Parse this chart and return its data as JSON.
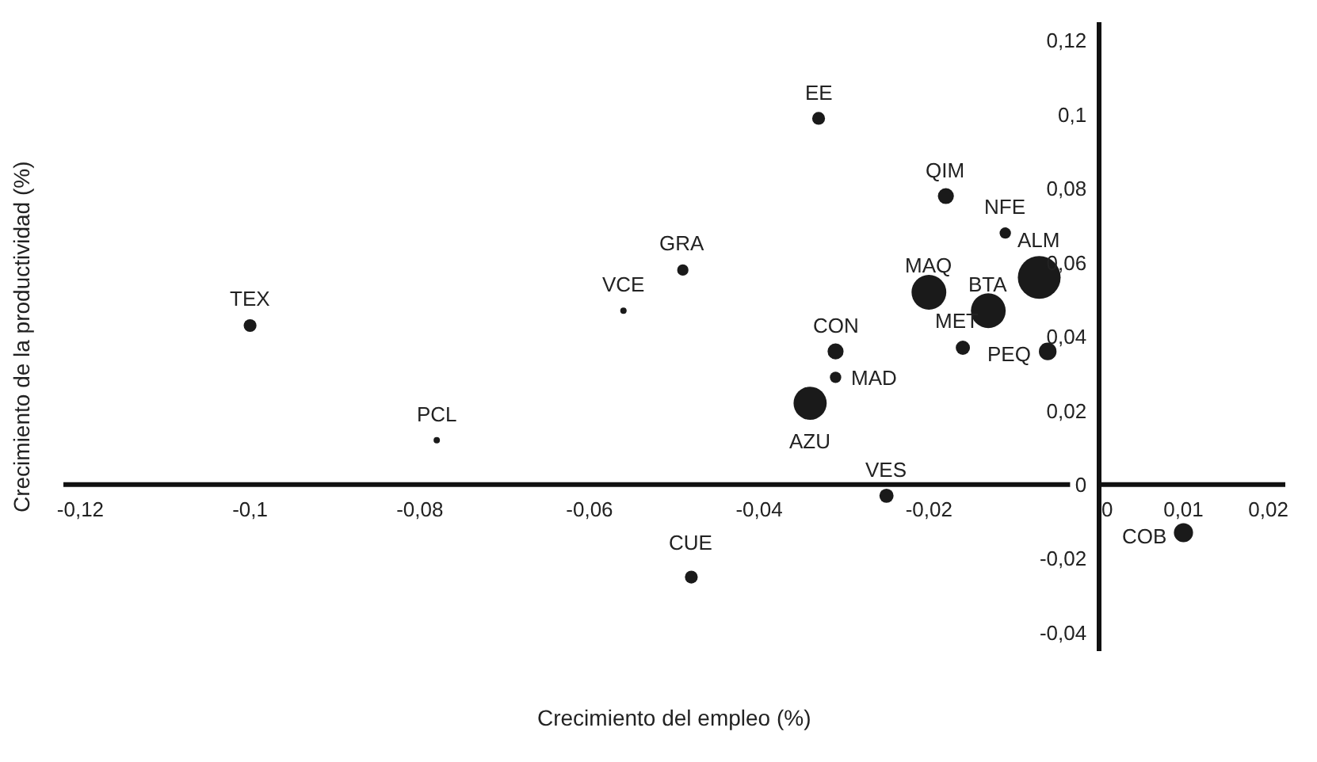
{
  "chart_data": {
    "type": "bubble",
    "xlabel": "Crecimiento del empleo (%)",
    "ylabel": "Crecimiento de la productividad (%)",
    "xlim": [
      -0.122,
      0.022
    ],
    "ylim": [
      -0.045,
      0.125
    ],
    "xticks": [
      {
        "value": -0.12,
        "label": "-0,12"
      },
      {
        "value": -0.1,
        "label": "-0,1"
      },
      {
        "value": -0.08,
        "label": "-0,08"
      },
      {
        "value": -0.06,
        "label": "-0,06"
      },
      {
        "value": -0.04,
        "label": "-0,04"
      },
      {
        "value": -0.02,
        "label": "-0,02"
      },
      0,
      {
        "value": 0.01,
        "label": "0,01"
      },
      {
        "value": 0.02,
        "label": "0,02"
      }
    ],
    "yticks": [
      {
        "value": -0.04,
        "label": "-0,04"
      },
      {
        "value": -0.02,
        "label": "-0,02"
      },
      0,
      {
        "value": 0.02,
        "label": "0,02"
      },
      {
        "value": 0.04,
        "label": "0,04"
      },
      {
        "value": 0.06,
        "label": "0,06"
      },
      {
        "value": 0.08,
        "label": "0,08"
      },
      {
        "value": 0.1,
        "label": "0,1"
      },
      {
        "value": 0.12,
        "label": "0,12"
      }
    ],
    "grid": false,
    "marker": "circle",
    "series": [
      {
        "color": "#1a1a1a",
        "x": [
          -0.1,
          -0.078,
          -0.056,
          -0.049,
          -0.048,
          -0.034,
          -0.031,
          -0.031,
          -0.033,
          -0.025,
          -0.018,
          -0.02,
          -0.016,
          -0.013,
          -0.011,
          -0.007,
          -0.006,
          0.01
        ],
        "values": [
          0.043,
          0.012,
          0.047,
          0.058,
          -0.025,
          0.022,
          0.036,
          0.029,
          0.099,
          -0.003,
          0.078,
          0.052,
          0.037,
          0.047,
          0.068,
          0.056,
          0.036,
          -0.013
        ],
        "sizes": [
          0.09,
          0.02,
          0.01,
          0.07,
          0.09,
          0.6,
          0.14,
          0.07,
          0.09,
          0.11,
          0.14,
          0.66,
          0.11,
          0.66,
          0.07,
          1,
          0.17,
          0.2
        ]
      }
    ],
    "annotations": [
      {
        "text": "TEX",
        "x": -0.1,
        "y": 0.043
      },
      {
        "text": "PCL",
        "x": -0.078,
        "y": 0.012
      },
      {
        "text": "VCE",
        "x": -0.056,
        "y": 0.047
      },
      {
        "text": "GRA",
        "x": -0.049,
        "y": 0.058
      },
      {
        "text": "CUE",
        "x": -0.048,
        "y": -0.025
      },
      {
        "text": "AZU",
        "x": -0.034,
        "y": 0.022
      },
      {
        "text": "CON",
        "x": -0.031,
        "y": 0.036
      },
      {
        "text": "MAD",
        "x": -0.031,
        "y": 0.029
      },
      {
        "text": "EE",
        "x": -0.033,
        "y": 0.099
      },
      {
        "text": "VES",
        "x": -0.025,
        "y": -0.003
      },
      {
        "text": "QIM",
        "x": -0.018,
        "y": 0.078
      },
      {
        "text": "MAQ",
        "x": -0.02,
        "y": 0.052
      },
      {
        "text": "MET",
        "x": -0.016,
        "y": 0.037
      },
      {
        "text": "BTA",
        "x": -0.013,
        "y": 0.047
      },
      {
        "text": "NFE",
        "x": -0.011,
        "y": 0.068
      },
      {
        "text": "ALM",
        "x": -0.007,
        "y": 0.056
      },
      {
        "text": "PEQ",
        "x": -0.006,
        "y": 0.036
      },
      {
        "text": "COB",
        "x": 0.01,
        "y": -0.013
      }
    ]
  }
}
